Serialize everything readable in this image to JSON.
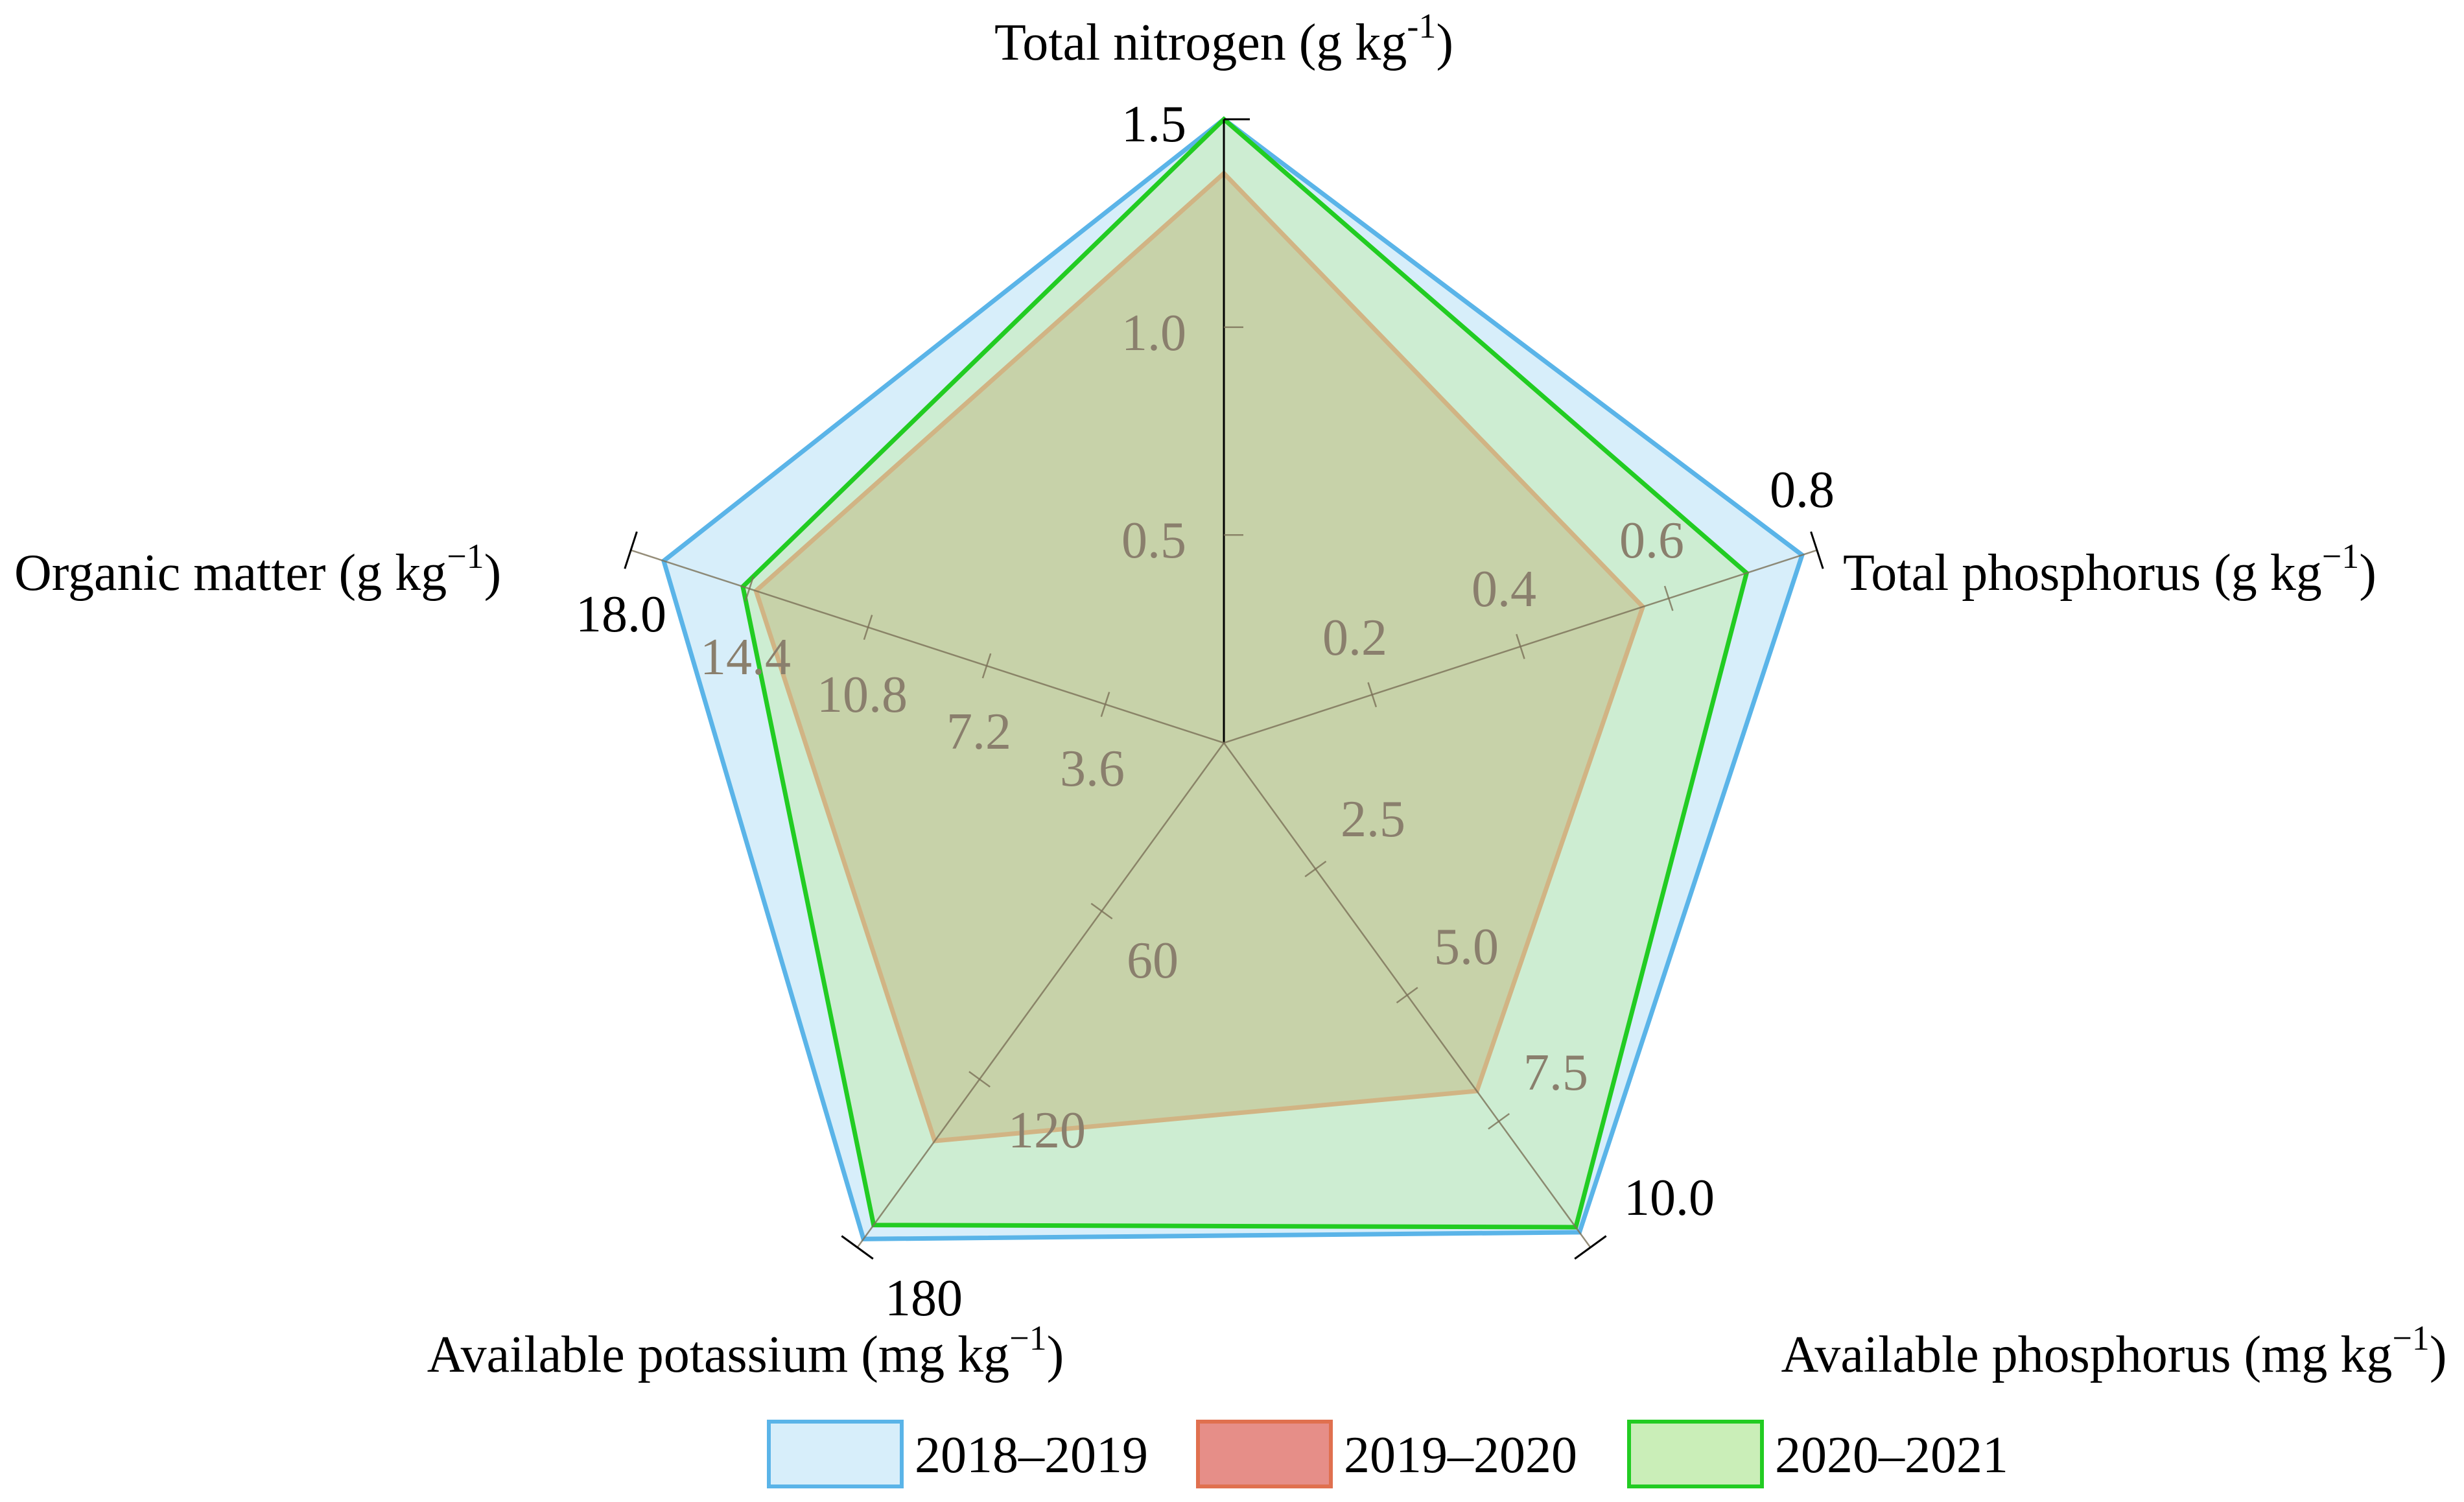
{
  "chart_data": {
    "type": "radar",
    "axes": [
      {
        "key": "tn",
        "label": "Total nitrogen (g kg",
        "sup": "-1",
        "close": ")",
        "max": 1.5,
        "ticks": [
          "0.5",
          "1.0"
        ],
        "max_label": "1.5"
      },
      {
        "key": "tp",
        "label": "Total phosphorus (g kg",
        "sup": "−1",
        "close": ")",
        "max": 0.8,
        "ticks": [
          "0.2",
          "0.4",
          "0.6"
        ],
        "max_label": "0.8"
      },
      {
        "key": "ap",
        "label": "Available phosphorus (mg kg",
        "sup": "−1",
        "close": ")",
        "max": 10.0,
        "ticks": [
          "2.5",
          "5.0",
          "7.5"
        ],
        "max_label": "10.0"
      },
      {
        "key": "ak",
        "label": "Available potassium (mg kg",
        "sup": "−1",
        "close": ")",
        "max": 180,
        "ticks": [
          "60",
          "120"
        ],
        "max_label": "180"
      },
      {
        "key": "om",
        "label": "Organic matter (g kg",
        "sup": "−1",
        "close": ")",
        "max": 18.0,
        "ticks": [
          "3.6",
          "7.2",
          "10.8",
          "14.4"
        ],
        "max_label": "18.0"
      }
    ],
    "series": [
      {
        "name": "2018–2019",
        "values": [
          1.5,
          0.78,
          9.7,
          177,
          17.0
        ],
        "stroke": "#5ab4e8",
        "fill": "#d3ecf9",
        "fill_opacity": 0.9
      },
      {
        "name": "2019–2020",
        "values": [
          1.37,
          0.565,
          6.9,
          142,
          14.2
        ],
        "stroke": "#e0704f",
        "fill": "#c28b66",
        "fill_opacity": 0.6
      },
      {
        "name": "2020–2021",
        "values": [
          1.5,
          0.705,
          9.6,
          172,
          14.6
        ],
        "stroke": "#22cc22",
        "fill": "#c4ecb0",
        "fill_opacity": 0.55
      }
    ],
    "legend": {
      "position": "bottom-right",
      "colors": [
        "#5ab4e8",
        "#e0704f",
        "#22cc22"
      ]
    },
    "grid": false
  }
}
